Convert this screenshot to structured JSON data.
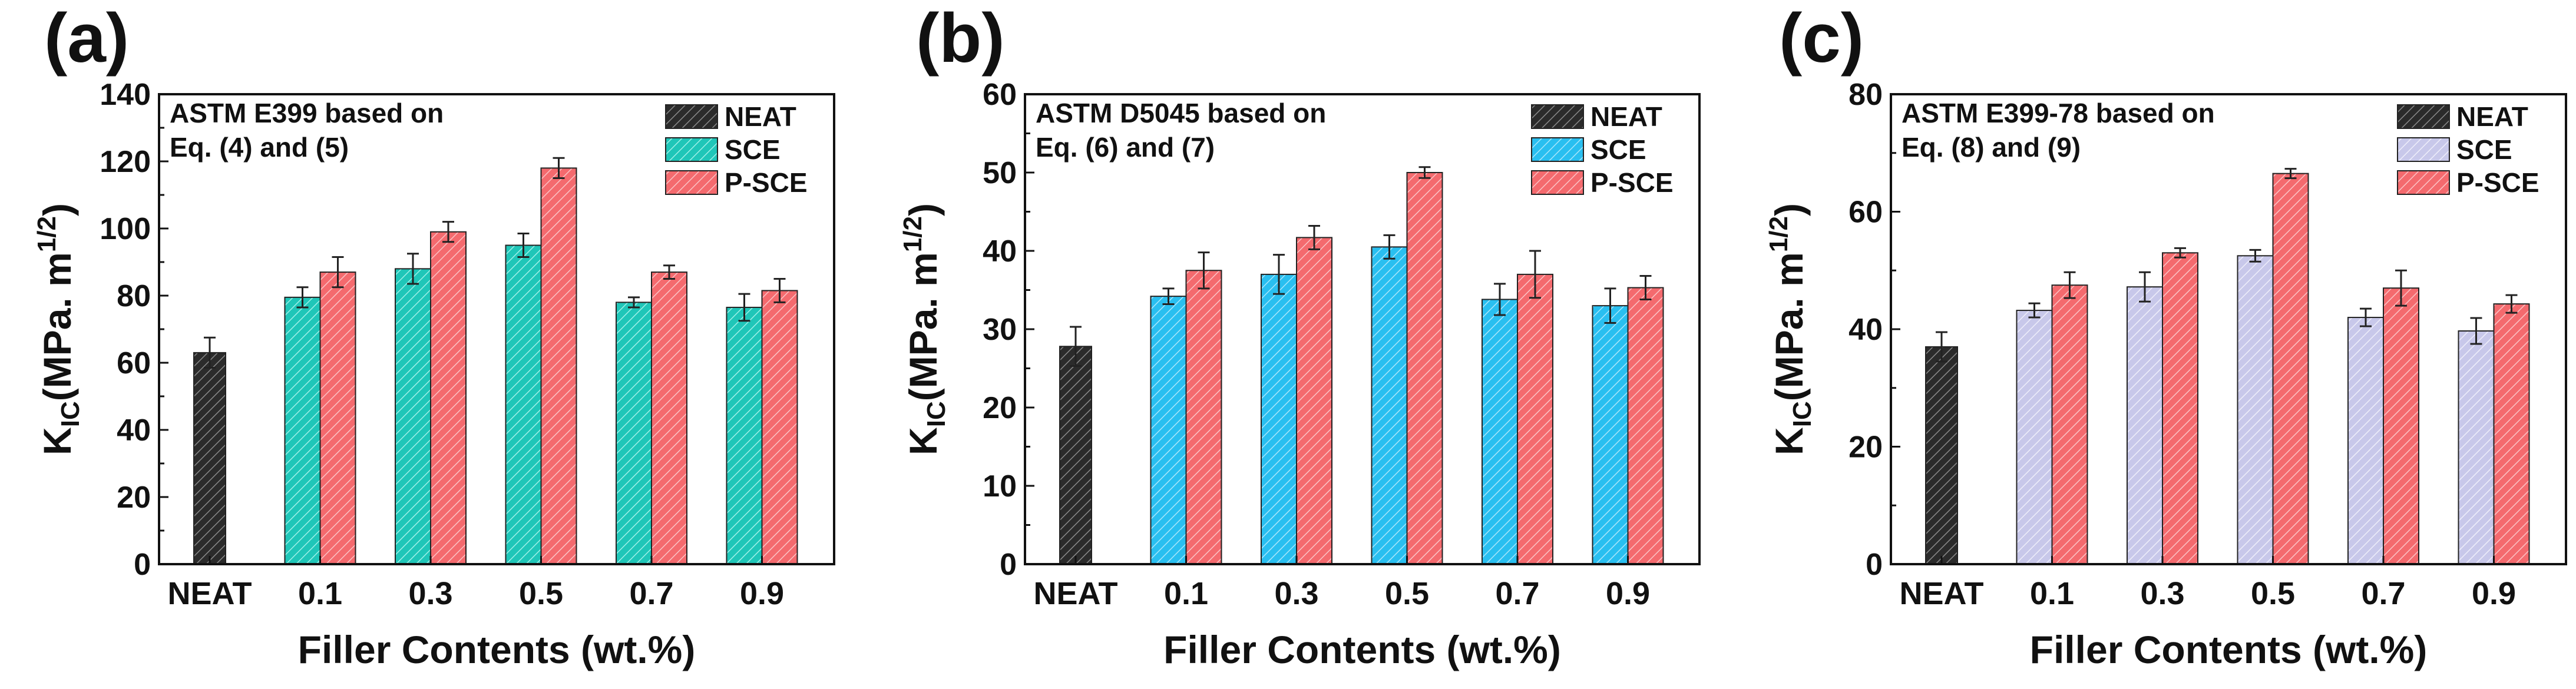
{
  "figure": {
    "panel_labels": [
      "(a)",
      "(b)",
      "(c)"
    ]
  },
  "legend_labels": [
    "NEAT",
    "SCE",
    "P-SCE"
  ],
  "colors": {
    "neat": "#2b2b2b",
    "sce": [
      "#1fc6b8",
      "#29bff0",
      "#c8c8ea"
    ],
    "psce": "#f46a6e",
    "axis": "#111111"
  },
  "chart_data": [
    {
      "type": "bar",
      "panel": "(a)",
      "annotation_lines": [
        "ASTM E399 based on",
        "Eq. (4) and (5)"
      ],
      "ylabel_main": "K",
      "ylabel_sub": "IC",
      "ylabel_rest": "(MPa. m",
      "ylabel_sup": "1/2",
      "ylabel_end": ")",
      "xlabel": "Filler Contents (wt.%)",
      "categories": [
        "NEAT",
        "0.1",
        "0.3",
        "0.5",
        "0.7",
        "0.9"
      ],
      "ylim": [
        0,
        140
      ],
      "yticks": [
        0,
        20,
        40,
        60,
        80,
        100,
        120,
        140
      ],
      "minor_step": 10,
      "neat": {
        "value": 63,
        "err": 4.5
      },
      "series": [
        {
          "name": "SCE",
          "values": [
            null,
            79.5,
            88,
            95,
            78,
            76.5
          ],
          "errors": [
            null,
            3,
            4.5,
            3.5,
            1.5,
            4
          ]
        },
        {
          "name": "P-SCE",
          "values": [
            null,
            87,
            99,
            118,
            87,
            81.5
          ],
          "errors": [
            null,
            4.5,
            3,
            3,
            2,
            3.5
          ]
        }
      ]
    },
    {
      "type": "bar",
      "panel": "(b)",
      "annotation_lines": [
        "ASTM D5045 based on",
        "Eq. (6) and (7)"
      ],
      "ylabel_main": "K",
      "ylabel_sub": "IC",
      "ylabel_rest": "(MPa. m",
      "ylabel_sup": "1/2",
      "ylabel_end": ")",
      "xlabel": "Filler Contents (wt.%)",
      "categories": [
        "NEAT",
        "0.1",
        "0.3",
        "0.5",
        "0.7",
        "0.9"
      ],
      "ylim": [
        0,
        60
      ],
      "yticks": [
        0,
        10,
        20,
        30,
        40,
        50,
        60
      ],
      "minor_step": 5,
      "neat": {
        "value": 27.8,
        "err": 2.5
      },
      "series": [
        {
          "name": "SCE",
          "values": [
            null,
            34.2,
            37,
            40.5,
            33.8,
            33
          ],
          "errors": [
            null,
            1,
            2.5,
            1.5,
            2,
            2.2
          ]
        },
        {
          "name": "P-SCE",
          "values": [
            null,
            37.5,
            41.7,
            50,
            37,
            35.3
          ],
          "errors": [
            null,
            2.3,
            1.5,
            0.7,
            3,
            1.5
          ]
        }
      ]
    },
    {
      "type": "bar",
      "panel": "(c)",
      "annotation_lines": [
        "ASTM E399-78 based on",
        "Eq. (8) and (9)"
      ],
      "ylabel_main": "K",
      "ylabel_sub": "IC",
      "ylabel_rest": "(MPa. m",
      "ylabel_sup": "1/2",
      "ylabel_end": ")",
      "xlabel": "Filler Contents (wt.%)",
      "categories": [
        "NEAT",
        "0.1",
        "0.3",
        "0.5",
        "0.7",
        "0.9"
      ],
      "ylim": [
        0,
        80
      ],
      "yticks": [
        0,
        20,
        40,
        60,
        80
      ],
      "minor_step": 10,
      "neat": {
        "value": 37,
        "err": 2.5
      },
      "series": [
        {
          "name": "SCE",
          "values": [
            null,
            43.2,
            47.2,
            52.5,
            42,
            39.7
          ],
          "errors": [
            null,
            1.2,
            2.5,
            1,
            1.5,
            2.2
          ]
        },
        {
          "name": "P-SCE",
          "values": [
            null,
            47.5,
            53,
            66.5,
            47,
            44.3
          ],
          "errors": [
            null,
            2.2,
            0.8,
            0.8,
            3,
            1.5
          ]
        }
      ]
    }
  ]
}
